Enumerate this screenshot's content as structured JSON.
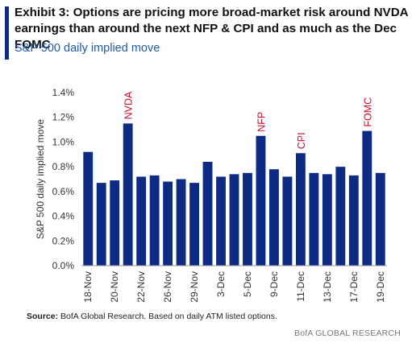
{
  "header": {
    "title": "Exhibit 3: Options are pricing more broad-market risk around NVDA earnings than around the next NFP & CPI and as much as the Dec FOMC",
    "subtitle": "S&P 500 daily implied move"
  },
  "footer": {
    "source_label": "Source:",
    "source_text": "BofA Global Research. Based on daily ATM listed options.",
    "brand": "BofA GLOBAL RESEARCH"
  },
  "colors": {
    "bar": "#0d2b83",
    "annotation": "#c8102e",
    "accent": "#0d2b83",
    "subtitle": "#1d5aa8"
  },
  "chart_data": {
    "type": "bar",
    "title": "",
    "xlabel": "",
    "ylabel": "S&P 500 daily implied move",
    "ylim": [
      0,
      1.4
    ],
    "yticks": [
      0,
      0.2,
      0.4,
      0.6,
      0.8,
      1.0,
      1.2,
      1.4
    ],
    "ytick_labels": [
      "0.0%",
      "0.2%",
      "0.4%",
      "0.6%",
      "0.8%",
      "1.0%",
      "1.2%",
      "1.4%"
    ],
    "grid": false,
    "legend": "none",
    "categories": [
      "18-Nov",
      "19-Nov",
      "20-Nov",
      "21-Nov",
      "22-Nov",
      "25-Nov",
      "26-Nov",
      "27-Nov",
      "29-Nov",
      "2-Dec",
      "3-Dec",
      "4-Dec",
      "5-Dec",
      "6-Dec",
      "9-Dec",
      "10-Dec",
      "11-Dec",
      "12-Dec",
      "13-Dec",
      "16-Dec",
      "17-Dec",
      "18-Dec",
      "19-Dec"
    ],
    "labeled_tick_indices": [
      0,
      2,
      4,
      6,
      8,
      10,
      12,
      14,
      16,
      18,
      20,
      22
    ],
    "values": [
      0.92,
      0.67,
      0.69,
      1.15,
      0.72,
      0.73,
      0.68,
      0.7,
      0.67,
      0.84,
      0.72,
      0.74,
      0.75,
      1.05,
      0.78,
      0.72,
      0.91,
      0.75,
      0.74,
      0.8,
      0.73,
      1.09,
      0.75
    ],
    "annotations": [
      {
        "index": 3,
        "text": "NVDA"
      },
      {
        "index": 13,
        "text": "NFP"
      },
      {
        "index": 16,
        "text": "CPI"
      },
      {
        "index": 21,
        "text": "FOMC"
      }
    ]
  }
}
